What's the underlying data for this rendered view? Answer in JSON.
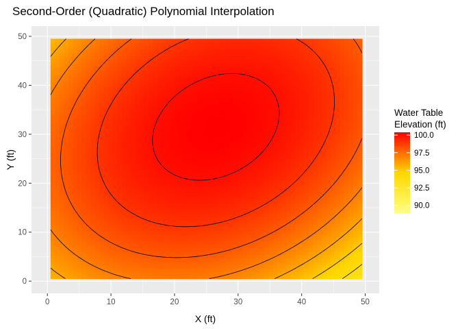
{
  "chart_data": {
    "type": "heatmap",
    "title": "Second-Order (Quadratic) Polynomial Interpolation",
    "xlabel": "X (ft)",
    "ylabel": "Y (ft)",
    "xlim": [
      -2.5,
      52.2
    ],
    "ylim": [
      -2.5,
      52.1
    ],
    "x_ticks": [
      0,
      10,
      20,
      30,
      40,
      50
    ],
    "y_ticks": [
      0,
      10,
      20,
      30,
      40,
      50
    ],
    "grid": true,
    "data_extent": {
      "x": [
        0.5,
        49.5
      ],
      "y": [
        0.5,
        49.5
      ]
    },
    "surface": {
      "form": "quadratic",
      "max_value": 100.4,
      "peak": [
        26.5,
        31.5
      ],
      "coefficients": {
        "xx": 0.0043,
        "yy": 0.0036,
        "xy": -0.002
      }
    },
    "contour_interval": 1,
    "contour_color": "#000000",
    "legend": {
      "title_lines": [
        "Water Table",
        "Elevation (ft)"
      ],
      "placement": "right",
      "ticks": [
        100.0,
        97.5,
        95.0,
        92.5,
        90.0
      ],
      "tick_labels": [
        "100.0",
        "97.5",
        "95.0",
        "92.5",
        "90.0"
      ],
      "range": [
        88.9,
        100.4
      ],
      "color_low": "#ffff80",
      "color_mid": "#ffd700",
      "color_high": "#ff0000"
    },
    "colors": {
      "panel_background": "#ebebeb",
      "grid": "#ffffff"
    }
  }
}
